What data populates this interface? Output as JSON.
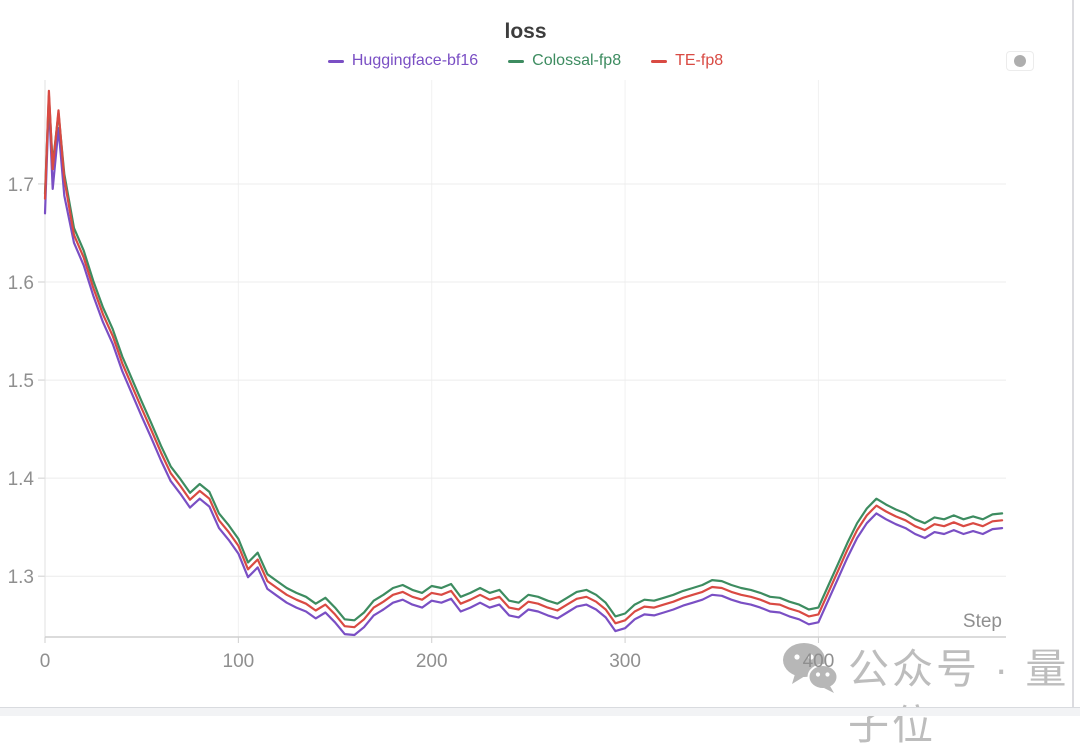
{
  "page": {
    "background": "#ffffff",
    "right_border_color": "#dcdce0",
    "bottom_bar_color": "#f2f3f5",
    "bottom_bar_border_color": "#d9dbdf"
  },
  "panel": {
    "options_button_icon": "dot-handle-icon"
  },
  "watermark": {
    "icon": "wechat-icon",
    "text": "公众号 · 量子位",
    "color": "#bdbdbd"
  },
  "chart_data": {
    "type": "line",
    "title": "loss",
    "xlabel": "Step",
    "ylabel": "",
    "xlim": [
      0,
      497
    ],
    "ylim": [
      1.238,
      1.806
    ],
    "x_ticks": [
      0,
      100,
      200,
      300,
      400
    ],
    "y_ticks": [
      1.3,
      1.4,
      1.5,
      1.6,
      1.7
    ],
    "grid": true,
    "legend_position": "top-center",
    "title_color": "#3d3d3d",
    "axis_color": "#cfcfcf",
    "left_axis_color": "#e2e2e2",
    "grid_color": "#ececec",
    "vgrid_color": "#f1f1f1",
    "tick_label_color": "#8f8f8f",
    "x": [
      0,
      2,
      4,
      7,
      10,
      15,
      20,
      25,
      30,
      35,
      40,
      45,
      50,
      55,
      60,
      65,
      70,
      75,
      80,
      85,
      90,
      95,
      100,
      105,
      110,
      115,
      120,
      125,
      130,
      135,
      140,
      145,
      150,
      155,
      160,
      165,
      170,
      175,
      180,
      185,
      190,
      195,
      200,
      205,
      210,
      215,
      220,
      225,
      230,
      235,
      240,
      245,
      250,
      255,
      260,
      265,
      270,
      275,
      280,
      285,
      290,
      295,
      300,
      305,
      310,
      315,
      320,
      325,
      330,
      335,
      340,
      345,
      350,
      355,
      360,
      365,
      370,
      375,
      380,
      385,
      390,
      395,
      400,
      405,
      410,
      415,
      420,
      425,
      430,
      435,
      440,
      445,
      450,
      455,
      460,
      465,
      470,
      475,
      480,
      485,
      490,
      495
    ],
    "series": [
      {
        "name": "Huggingface-bf16",
        "color": "#7a4fc4",
        "values": [
          1.67,
          1.785,
          1.695,
          1.757,
          1.688,
          1.64,
          1.617,
          1.586,
          1.559,
          1.537,
          1.509,
          1.486,
          1.463,
          1.441,
          1.418,
          1.397,
          1.384,
          1.37,
          1.379,
          1.371,
          1.349,
          1.337,
          1.323,
          1.299,
          1.309,
          1.287,
          1.28,
          1.273,
          1.268,
          1.264,
          1.257,
          1.263,
          1.253,
          1.241,
          1.24,
          1.248,
          1.26,
          1.266,
          1.273,
          1.276,
          1.271,
          1.268,
          1.275,
          1.273,
          1.277,
          1.264,
          1.268,
          1.273,
          1.268,
          1.271,
          1.26,
          1.258,
          1.266,
          1.264,
          1.26,
          1.257,
          1.263,
          1.269,
          1.271,
          1.266,
          1.258,
          1.244,
          1.247,
          1.256,
          1.261,
          1.26,
          1.263,
          1.266,
          1.27,
          1.273,
          1.276,
          1.281,
          1.28,
          1.276,
          1.273,
          1.271,
          1.268,
          1.264,
          1.263,
          1.259,
          1.256,
          1.251,
          1.253,
          1.275,
          1.297,
          1.319,
          1.339,
          1.354,
          1.364,
          1.358,
          1.353,
          1.349,
          1.343,
          1.339,
          1.345,
          1.343,
          1.347,
          1.343,
          1.346,
          1.343,
          1.348,
          1.349
        ]
      },
      {
        "name": "Colossal-fp8",
        "color": "#3d8c60",
        "values": [
          1.69,
          1.79,
          1.72,
          1.772,
          1.71,
          1.655,
          1.632,
          1.601,
          1.574,
          1.552,
          1.524,
          1.501,
          1.478,
          1.456,
          1.433,
          1.412,
          1.399,
          1.385,
          1.394,
          1.386,
          1.364,
          1.352,
          1.338,
          1.314,
          1.324,
          1.302,
          1.295,
          1.288,
          1.283,
          1.279,
          1.272,
          1.278,
          1.268,
          1.256,
          1.255,
          1.263,
          1.275,
          1.281,
          1.288,
          1.291,
          1.286,
          1.283,
          1.29,
          1.288,
          1.292,
          1.279,
          1.283,
          1.288,
          1.283,
          1.286,
          1.275,
          1.273,
          1.281,
          1.279,
          1.275,
          1.272,
          1.278,
          1.284,
          1.286,
          1.281,
          1.273,
          1.259,
          1.262,
          1.271,
          1.276,
          1.275,
          1.278,
          1.281,
          1.285,
          1.288,
          1.291,
          1.296,
          1.295,
          1.291,
          1.288,
          1.286,
          1.283,
          1.279,
          1.278,
          1.274,
          1.271,
          1.266,
          1.268,
          1.29,
          1.312,
          1.334,
          1.354,
          1.369,
          1.379,
          1.373,
          1.368,
          1.364,
          1.358,
          1.354,
          1.36,
          1.358,
          1.362,
          1.358,
          1.361,
          1.358,
          1.363,
          1.364
        ]
      },
      {
        "name": "TE-fp8",
        "color": "#d94a43",
        "values": [
          1.685,
          1.795,
          1.715,
          1.775,
          1.705,
          1.648,
          1.625,
          1.594,
          1.567,
          1.545,
          1.517,
          1.494,
          1.471,
          1.449,
          1.426,
          1.405,
          1.392,
          1.378,
          1.387,
          1.379,
          1.357,
          1.345,
          1.331,
          1.307,
          1.317,
          1.295,
          1.288,
          1.281,
          1.276,
          1.272,
          1.265,
          1.271,
          1.261,
          1.249,
          1.248,
          1.256,
          1.268,
          1.274,
          1.281,
          1.284,
          1.279,
          1.276,
          1.283,
          1.281,
          1.285,
          1.272,
          1.276,
          1.281,
          1.276,
          1.279,
          1.268,
          1.266,
          1.274,
          1.272,
          1.268,
          1.265,
          1.271,
          1.277,
          1.279,
          1.274,
          1.266,
          1.252,
          1.255,
          1.264,
          1.269,
          1.268,
          1.271,
          1.274,
          1.278,
          1.281,
          1.284,
          1.289,
          1.288,
          1.284,
          1.281,
          1.279,
          1.276,
          1.272,
          1.271,
          1.267,
          1.264,
          1.259,
          1.261,
          1.283,
          1.305,
          1.327,
          1.347,
          1.362,
          1.372,
          1.366,
          1.361,
          1.357,
          1.351,
          1.347,
          1.353,
          1.351,
          1.355,
          1.351,
          1.354,
          1.351,
          1.356,
          1.357
        ]
      }
    ]
  }
}
